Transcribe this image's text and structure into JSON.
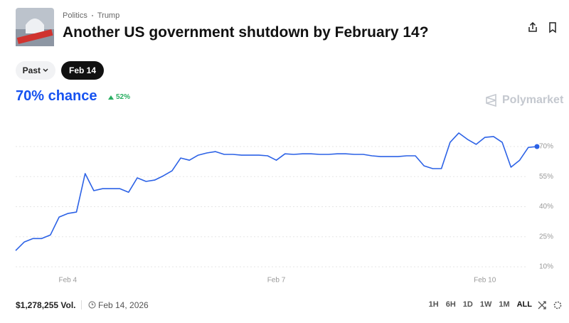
{
  "header": {
    "tags": [
      "Politics",
      "Trump"
    ],
    "title": "Another US government shutdown by February 14?"
  },
  "filters": [
    "Past",
    "Feb 14"
  ],
  "chance": "70% chance",
  "change": "52%",
  "brand": "Polymarket",
  "chart_data": {
    "type": "line",
    "categories": [
      null,
      null,
      null,
      null,
      null,
      null,
      "Feb 4",
      null,
      null,
      null,
      null,
      null,
      null,
      null,
      null,
      null,
      null,
      null,
      null,
      null,
      null,
      null,
      null,
      null,
      null,
      null,
      null,
      null,
      null,
      null,
      "Feb 7",
      null,
      null,
      null,
      null,
      null,
      null,
      null,
      null,
      null,
      null,
      null,
      null,
      null,
      null,
      null,
      null,
      null,
      null,
      null,
      null,
      null,
      null,
      null,
      "Feb 10",
      null,
      null,
      null,
      null,
      null,
      null
    ],
    "values": [
      18.1,
      22.4,
      24.1,
      24.1,
      25.9,
      34.8,
      36.6,
      37.3,
      56.5,
      48,
      49,
      49,
      49,
      47.2,
      54.4,
      52.6,
      53.3,
      55.4,
      57.9,
      64.3,
      63.2,
      65.7,
      66.8,
      67.5,
      66.1,
      66.1,
      65.7,
      65.7,
      65.7,
      65.4,
      63.2,
      66.4,
      66.1,
      66.4,
      66.4,
      66.1,
      66.1,
      66.4,
      66.4,
      66.1,
      66.1,
      65.4,
      65,
      65,
      65,
      65.4,
      65.4,
      60.4,
      59,
      59,
      72.1,
      76.8,
      73.6,
      71.1,
      74.6,
      75,
      72.1,
      59.7,
      63.2,
      69.6,
      70
    ],
    "color": "#2c62e6",
    "ylim": [
      9,
      78
    ],
    "yticks": [
      {
        "value": 10,
        "label": "10%"
      },
      {
        "value": 25,
        "label": "25%"
      },
      {
        "value": 40,
        "label": "40%"
      },
      {
        "value": 55,
        "label": "55%"
      },
      {
        "value": 70,
        "label": "70%"
      }
    ],
    "grid": true
  },
  "footer": {
    "volume": "$1,278,255 Vol.",
    "end_date": "Feb 14, 2026",
    "ranges": [
      "1H",
      "6H",
      "1D",
      "1W",
      "1M",
      "ALL"
    ]
  }
}
